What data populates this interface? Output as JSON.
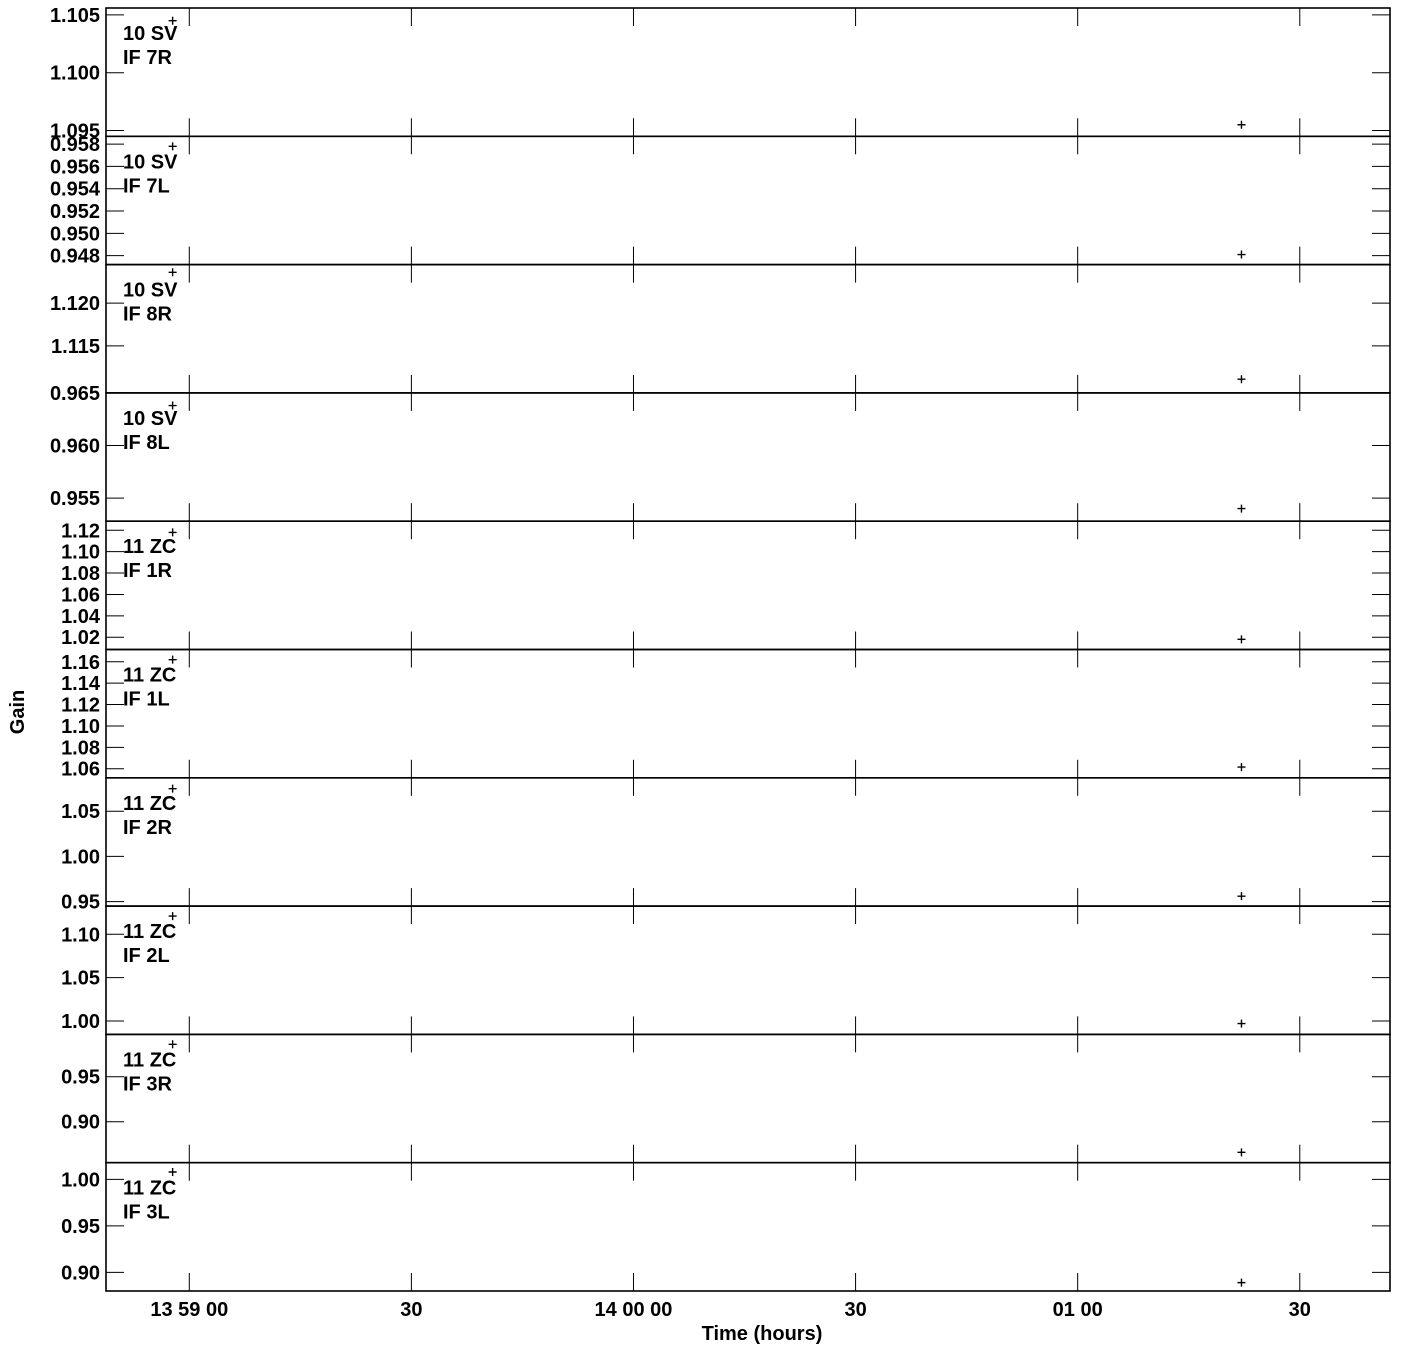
{
  "chart_data": {
    "type": "scatter",
    "title": "",
    "xlabel": "Time (hours)",
    "ylabel": "Gain",
    "x_range_seconds_after_13_58_00": [
      54,
      146.5
    ],
    "x_ticks": [
      {
        "s": 60,
        "label": "13 59 00"
      },
      {
        "s": 76,
        "label": "30"
      },
      {
        "s": 92,
        "label": "14 00 00"
      },
      {
        "s": 108,
        "label": "30"
      },
      {
        "s": 124,
        "label": "01 00"
      },
      {
        "s": 140,
        "label": "30"
      }
    ],
    "x_minor_ticks_seconds": [
      60,
      76,
      92,
      108,
      124,
      140
    ],
    "panels": [
      {
        "source": "10 SV",
        "if": "IF 7R",
        "ylim": [
          1.0945,
          1.1056
        ],
        "ticks": [
          1.095,
          1.1,
          1.105
        ],
        "tick_labels": [
          "1.095",
          "1.100",
          "1.105"
        ],
        "points": [
          {
            "t": 58.8,
            "y": 1.1045
          },
          {
            "t": 135.8,
            "y": 1.0955
          }
        ]
      },
      {
        "source": "10 SV",
        "if": "IF 7L",
        "ylim": [
          0.9472,
          0.9587
        ],
        "ticks": [
          0.948,
          0.95,
          0.952,
          0.954,
          0.956,
          0.958
        ],
        "tick_labels": [
          "0.948",
          "0.950",
          "0.952",
          "0.954",
          "0.956",
          "0.958"
        ],
        "points": [
          {
            "t": 58.8,
            "y": 0.9578
          },
          {
            "t": 135.8,
            "y": 0.9481
          }
        ]
      },
      {
        "source": "10 SV",
        "if": "IF 8R",
        "ylim": [
          1.1095,
          1.1245
        ],
        "ticks": [
          1.115,
          1.12
        ],
        "tick_labels": [
          "1.115",
          "1.120"
        ],
        "points": [
          {
            "t": 58.8,
            "y": 1.1236
          },
          {
            "t": 135.8,
            "y": 1.1111
          }
        ]
      },
      {
        "source": "10 SV",
        "if": "IF 8L",
        "ylim": [
          0.9528,
          0.965
        ],
        "ticks": [
          0.955,
          0.96,
          0.965
        ],
        "tick_labels": [
          "0.955",
          "0.960",
          "0.965"
        ],
        "points": [
          {
            "t": 58.8,
            "y": 0.9638
          },
          {
            "t": 135.8,
            "y": 0.954
          }
        ]
      },
      {
        "source": "11 ZC",
        "if": "IF 1R",
        "ylim": [
          1.0085,
          1.1285
        ],
        "ticks": [
          1.02,
          1.04,
          1.06,
          1.08,
          1.1,
          1.12
        ],
        "tick_labels": [
          "1.02",
          "1.04",
          "1.06",
          "1.08",
          "1.10",
          "1.12"
        ],
        "points": [
          {
            "t": 58.8,
            "y": 1.118
          },
          {
            "t": 135.8,
            "y": 1.018
          }
        ]
      },
      {
        "source": "11 ZC",
        "if": "IF 1L",
        "ylim": [
          1.0515,
          1.1715
        ],
        "ticks": [
          1.06,
          1.08,
          1.1,
          1.12,
          1.14,
          1.16
        ],
        "tick_labels": [
          "1.06",
          "1.08",
          "1.10",
          "1.12",
          "1.14",
          "1.16"
        ],
        "points": [
          {
            "t": 58.8,
            "y": 1.162
          },
          {
            "t": 135.8,
            "y": 1.0615
          }
        ]
      },
      {
        "source": "11 ZC",
        "if": "IF 2R",
        "ylim": [
          0.945,
          1.087
        ],
        "ticks": [
          0.95,
          1.0,
          1.05
        ],
        "tick_labels": [
          "0.95",
          "1.00",
          "1.05"
        ],
        "points": [
          {
            "t": 58.8,
            "y": 1.075
          },
          {
            "t": 135.8,
            "y": 0.956
          }
        ]
      },
      {
        "source": "11 ZC",
        "if": "IF 2L",
        "ylim": [
          0.9845,
          1.1325
        ],
        "ticks": [
          1.0,
          1.05,
          1.1
        ],
        "tick_labels": [
          "1.00",
          "1.05",
          "1.10"
        ],
        "points": [
          {
            "t": 58.8,
            "y": 1.121
          },
          {
            "t": 135.8,
            "y": 0.997
          }
        ]
      },
      {
        "source": "11 ZC",
        "if": "IF 3R",
        "ylim": [
          0.8545,
          0.997
        ],
        "ticks": [
          0.9,
          0.95
        ],
        "tick_labels": [
          "0.90",
          "0.95"
        ],
        "points": [
          {
            "t": 58.8,
            "y": 0.986
          },
          {
            "t": 135.8,
            "y": 0.866
          }
        ]
      },
      {
        "source": "11 ZC",
        "if": "IF 3L",
        "ylim": [
          0.88,
          1.018
        ],
        "ticks": [
          0.9,
          0.95,
          1.0
        ],
        "tick_labels": [
          "0.90",
          "0.95",
          "1.00"
        ],
        "points": [
          {
            "t": 58.8,
            "y": 1.008
          },
          {
            "t": 135.8,
            "y": 0.889
          }
        ]
      }
    ]
  }
}
